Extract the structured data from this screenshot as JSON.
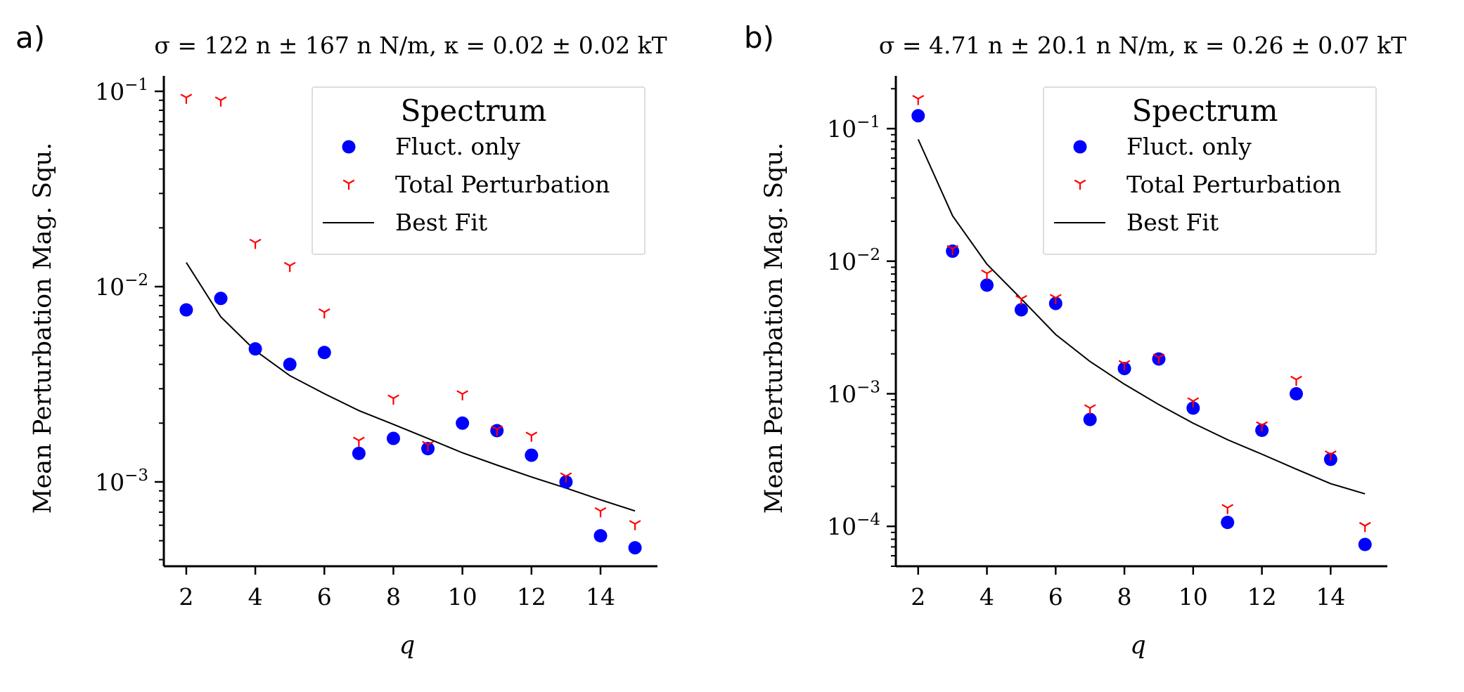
{
  "colors": {
    "fluct": "#0000ff",
    "total": "#ff0000",
    "fit": "#000000",
    "axis": "#000000",
    "legend_border": "#dddddd"
  },
  "chart_data": [
    {
      "type": "scatter",
      "panel_label": "a)",
      "title": "σ = 122 n ± 167 n N/m, κ = 0.02 ± 0.02 kT",
      "xlabel": "q",
      "ylabel": "Mean Perturbation Mag. Squ.",
      "yscale": "log",
      "xlim": [
        1.35,
        15.65
      ],
      "ylim": [
        0.00037,
        0.12
      ],
      "xticks": [
        2,
        4,
        6,
        8,
        10,
        12,
        14
      ],
      "xtick_labels": [
        "2",
        "4",
        "6",
        "8",
        "10",
        "12",
        "14"
      ],
      "yticks": [
        0.1,
        0.01,
        0.001
      ],
      "ytick_labels": [
        {
          "base": "10",
          "exp": "−1"
        },
        {
          "base": "10",
          "exp": "−2"
        },
        {
          "base": "10",
          "exp": "−3"
        }
      ],
      "legend": {
        "title": "Spectrum",
        "position": "upper right",
        "entries": [
          "Fluct. only",
          "Total Perturbation",
          "Best Fit"
        ]
      },
      "x": [
        2,
        3,
        4,
        5,
        6,
        7,
        8,
        9,
        10,
        11,
        12,
        13,
        14,
        15
      ],
      "series": [
        {
          "name": "Fluct. only",
          "marker": "circle",
          "values": [
            0.0076,
            0.0087,
            0.0048,
            0.004,
            0.0046,
            0.0014,
            0.00167,
            0.00148,
            0.002,
            0.00183,
            0.00137,
            0.001,
            0.00053,
            0.00046
          ]
        },
        {
          "name": "Total Perturbation",
          "marker": "tri_down",
          "values": [
            0.093,
            0.09,
            0.0168,
            0.0128,
            0.0074,
            0.00163,
            0.00268,
            0.00155,
            0.00282,
            0.00186,
            0.00173,
            0.00107,
            0.00071,
            0.00061
          ]
        },
        {
          "name": "Best Fit",
          "marker": "line",
          "values": [
            0.0133,
            0.007,
            0.0047,
            0.0035,
            0.00283,
            0.00232,
            0.00197,
            0.00167,
            0.00141,
            0.00122,
            0.00106,
            0.00093,
            0.00081,
            0.00071
          ]
        }
      ]
    },
    {
      "type": "scatter",
      "panel_label": "b)",
      "title": "σ = 4.71 n ± 20.1 n N/m, κ = 0.26 ± 0.07 kT",
      "xlabel": "q",
      "ylabel": "Mean Perturbation Mag. Squ.",
      "yscale": "log",
      "xlim": [
        1.35,
        15.65
      ],
      "ylim": [
        5e-05,
        0.25
      ],
      "xticks": [
        2,
        4,
        6,
        8,
        10,
        12,
        14
      ],
      "xtick_labels": [
        "2",
        "4",
        "6",
        "8",
        "10",
        "12",
        "14"
      ],
      "yticks": [
        0.1,
        0.01,
        0.001,
        0.0001
      ],
      "ytick_labels": [
        {
          "base": "10",
          "exp": "−1"
        },
        {
          "base": "10",
          "exp": "−2"
        },
        {
          "base": "10",
          "exp": "−3"
        },
        {
          "base": "10",
          "exp": "−4"
        }
      ],
      "legend": {
        "title": "Spectrum",
        "position": "upper right",
        "entries": [
          "Fluct. only",
          "Total Perturbation",
          "Best Fit"
        ]
      },
      "x": [
        2,
        3,
        4,
        5,
        6,
        7,
        8,
        9,
        10,
        11,
        12,
        13,
        14,
        15
      ],
      "series": [
        {
          "name": "Fluct. only",
          "marker": "circle",
          "values": [
            0.125,
            0.0119,
            0.0066,
            0.0043,
            0.0048,
            0.00064,
            0.00155,
            0.00183,
            0.00078,
            0.000107,
            0.00053,
            0.001,
            0.00032,
            7.3e-05
          ]
        },
        {
          "name": "Total Perturbation",
          "marker": "tri_down",
          "values": [
            0.168,
            0.0124,
            0.0081,
            0.0052,
            0.0053,
            0.00078,
            0.00168,
            0.00188,
            0.00088,
            0.000138,
            0.00058,
            0.00128,
            0.00035,
            0.000101
          ]
        },
        {
          "name": "Best Fit",
          "marker": "line",
          "values": [
            0.083,
            0.022,
            0.0095,
            0.0052,
            0.0028,
            0.00175,
            0.00118,
            0.00083,
            0.0006,
            0.00045,
            0.00035,
            0.00027,
            0.00021,
            0.000176
          ]
        }
      ]
    }
  ]
}
